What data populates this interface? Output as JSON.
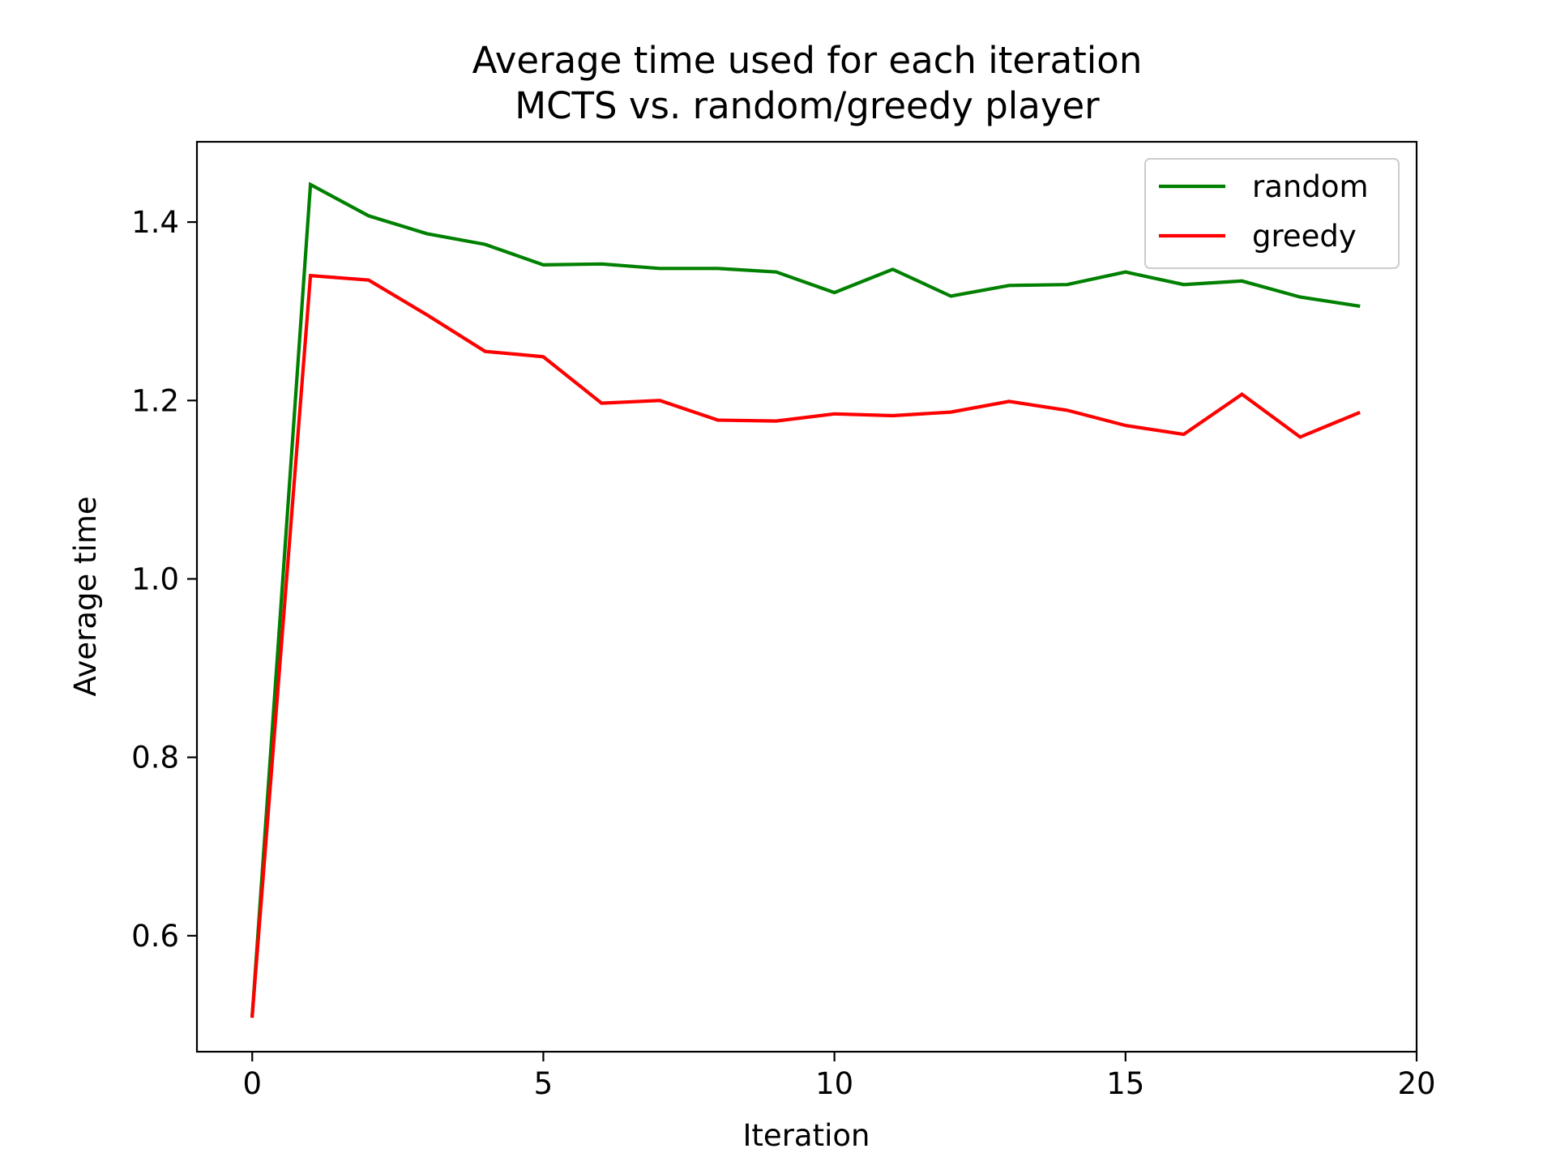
{
  "chart_data": {
    "type": "line",
    "title": "Average time used for each iteration",
    "subtitle": "MCTS vs. random/greedy player",
    "xlabel": "Iteration",
    "ylabel": "Average time",
    "xlim": [
      -0.95,
      20
    ],
    "ylim": [
      0.47,
      1.49
    ],
    "xticks": [
      0,
      5,
      10,
      15,
      20
    ],
    "xtick_labels": [
      "0",
      "5",
      "10",
      "15",
      "20"
    ],
    "yticks": [
      0.6,
      0.8,
      1.0,
      1.2,
      1.4
    ],
    "ytick_labels": [
      "0.6",
      "0.8",
      "1.0",
      "1.2",
      "1.4"
    ],
    "grid": false,
    "legend_position": "top-right",
    "x": [
      0,
      1,
      2,
      3,
      4,
      5,
      6,
      7,
      8,
      9,
      10,
      11,
      12,
      13,
      14,
      15,
      16,
      17,
      18,
      19
    ],
    "series": [
      {
        "name": "random",
        "color": "#008000",
        "values": [
          0.51,
          1.442,
          1.407,
          1.387,
          1.375,
          1.352,
          1.353,
          1.348,
          1.348,
          1.344,
          1.321,
          1.347,
          1.317,
          1.329,
          1.33,
          1.344,
          1.33,
          1.334,
          1.316,
          1.306
        ]
      },
      {
        "name": "greedy",
        "color": "#ff0000",
        "values": [
          0.51,
          1.34,
          1.335,
          1.296,
          1.255,
          1.249,
          1.197,
          1.2,
          1.178,
          1.177,
          1.185,
          1.183,
          1.187,
          1.199,
          1.189,
          1.172,
          1.162,
          1.207,
          1.159,
          1.186
        ]
      }
    ]
  }
}
